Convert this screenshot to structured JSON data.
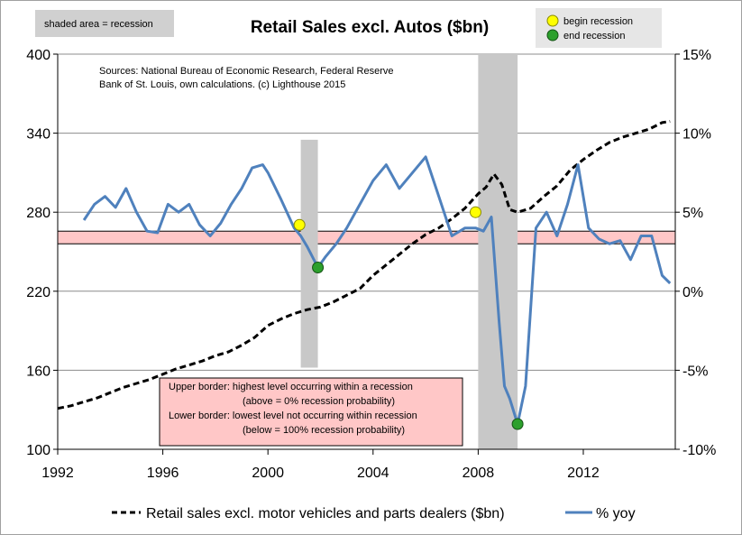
{
  "chart_data": {
    "type": "line",
    "title": "Retail Sales excl. Autos ($bn)",
    "shaded_label": "shaded area = recession",
    "marker_legend": {
      "begin": "begin recession",
      "end": "end recession"
    },
    "sources": [
      "Sources: National Bureau of Economic Research, Federal Reserve",
      "Bank of St. Louis, own calculations. (c) Lighthouse 2015"
    ],
    "note_box": [
      "Upper border: highest level occurring within a recession",
      "(above = 0% recession probability)",
      "Lower border: lowest level not occurring within recession",
      "(below = 100% recession probability)"
    ],
    "x_ticks": [
      "1992",
      "1996",
      "2000",
      "2004",
      "2008",
      "2012"
    ],
    "xlim": [
      1992,
      2015.5
    ],
    "y_left_ticks": [
      "100",
      "160",
      "220",
      "280",
      "340",
      "400"
    ],
    "ylim_left": [
      100,
      400
    ],
    "y_right_ticks": [
      "-10%",
      "-5%",
      "0%",
      "5%",
      "10%",
      "15%"
    ],
    "ylim_right": [
      -10,
      15
    ],
    "recessions": [
      [
        2001.25,
        2001.9
      ],
      [
        2008.0,
        2009.5
      ]
    ],
    "band_pct": [
      3.0,
      3.8
    ],
    "colors": {
      "sales": "#000000",
      "yoy": "#4f81bd",
      "band": "#ffc7c7",
      "shade": "#c8c8c8",
      "begin": "#ffff00",
      "end": "#2ca02c"
    },
    "series": [
      {
        "name": "Retail sales excl. motor vehicles and parts dealers ($bn)",
        "axis": "left",
        "style": "dashed",
        "x": [
          1992.0,
          1992.5,
          1993.0,
          1993.5,
          1994.0,
          1994.5,
          1995.0,
          1995.5,
          1996.0,
          1996.5,
          1997.0,
          1997.5,
          1998.0,
          1998.5,
          1999.0,
          1999.5,
          2000.0,
          2000.5,
          2001.0,
          2001.5,
          2002.0,
          2002.5,
          2003.0,
          2003.5,
          2004.0,
          2004.5,
          2005.0,
          2005.5,
          2006.0,
          2006.5,
          2007.0,
          2007.5,
          2008.0,
          2008.3,
          2008.6,
          2008.9,
          2009.2,
          2009.5,
          2010.0,
          2010.5,
          2011.0,
          2011.5,
          2012.0,
          2012.5,
          2013.0,
          2013.5,
          2014.0,
          2014.5,
          2015.0,
          2015.3
        ],
        "values": [
          131,
          133,
          136,
          139,
          143,
          147,
          150,
          153,
          157,
          161,
          164,
          167,
          171,
          174,
          179,
          185,
          194,
          199,
          203,
          206,
          208,
          212,
          217,
          222,
          232,
          240,
          248,
          256,
          263,
          268,
          275,
          283,
          294,
          299,
          309,
          301,
          282,
          280,
          283,
          292,
          300,
          312,
          320,
          327,
          333,
          337,
          340,
          343,
          348,
          349
        ]
      },
      {
        "name": "% yoy",
        "axis": "right",
        "style": "solid",
        "x": [
          1993.0,
          1993.4,
          1993.8,
          1994.2,
          1994.6,
          1995.0,
          1995.4,
          1995.8,
          1996.2,
          1996.6,
          1997.0,
          1997.4,
          1997.8,
          1998.2,
          1998.6,
          1999.0,
          1999.4,
          1999.8,
          2000.0,
          2000.5,
          2001.0,
          2001.25,
          2001.5,
          2001.9,
          2002.2,
          2002.6,
          2003.0,
          2003.5,
          2004.0,
          2004.5,
          2005.0,
          2005.5,
          2006.0,
          2006.5,
          2007.0,
          2007.5,
          2007.9,
          2008.2,
          2008.5,
          2008.8,
          2009.0,
          2009.2,
          2009.5,
          2009.8,
          2010.2,
          2010.6,
          2011.0,
          2011.4,
          2011.8,
          2012.2,
          2012.6,
          2013.0,
          2013.4,
          2013.8,
          2014.2,
          2014.6,
          2015.0,
          2015.3
        ],
        "values": [
          4.5,
          5.5,
          6.0,
          5.3,
          6.5,
          5.0,
          3.8,
          3.7,
          5.5,
          5.0,
          5.5,
          4.2,
          3.5,
          4.3,
          5.5,
          6.5,
          7.8,
          8.0,
          7.5,
          5.8,
          4.0,
          3.5,
          2.8,
          1.5,
          2.2,
          3.0,
          4.0,
          5.5,
          7.0,
          8.0,
          6.5,
          7.5,
          8.5,
          6.0,
          3.5,
          4.0,
          4.0,
          3.8,
          4.7,
          -2.0,
          -6.0,
          -6.8,
          -8.4,
          -6.0,
          4.0,
          5.0,
          3.5,
          5.5,
          8.0,
          4.0,
          3.3,
          3.0,
          3.2,
          2.0,
          3.5,
          3.5,
          1.0,
          0.5
        ]
      }
    ],
    "markers": [
      {
        "type": "begin",
        "x": 2001.2,
        "pct": 4.2
      },
      {
        "type": "end",
        "x": 2001.9,
        "pct": 1.5
      },
      {
        "type": "begin",
        "x": 2007.9,
        "pct": 5.0
      },
      {
        "type": "end",
        "x": 2009.5,
        "pct": -8.4
      }
    ],
    "legend_position": "bottom",
    "grid": "horizontal"
  }
}
